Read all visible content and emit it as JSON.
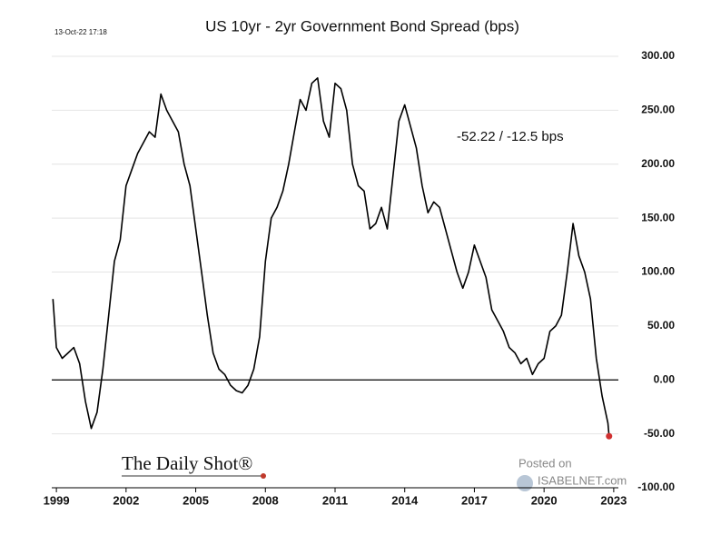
{
  "chart_data": {
    "type": "line",
    "title": "US 10yr - 2yr Government Bond Spread (bps)",
    "timestamp": "13-Oct-22 17:18",
    "annotation": "-52.22  /  -12.5 bps",
    "source": "The Daily Shot®",
    "posted_on": "Posted on",
    "watermark": "ISABELNET.com",
    "xlim": [
      1998.8,
      2023.2
    ],
    "xticks": [
      1999,
      2002,
      2005,
      2008,
      2011,
      2014,
      2017,
      2020,
      2023
    ],
    "ylim": [
      -100,
      300
    ],
    "yticks": [
      {
        "value": 300,
        "label": "300.00"
      },
      {
        "value": 250,
        "label": "250.00"
      },
      {
        "value": 200,
        "label": "200.00"
      },
      {
        "value": 150,
        "label": "150.00"
      },
      {
        "value": 100,
        "label": "100.00"
      },
      {
        "value": 50,
        "label": "50.00"
      },
      {
        "value": 0,
        "label": "0.00"
      },
      {
        "value": -50,
        "label": "-50.00"
      },
      {
        "value": -100,
        "label": "-100.00"
      }
    ],
    "grid": true,
    "zero_line": true,
    "last_point_color": "#d03030",
    "x": [
      1998.85,
      1999,
      1999.25,
      1999.5,
      1999.75,
      2000,
      2000.25,
      2000.5,
      2000.75,
      2001,
      2001.25,
      2001.5,
      2001.75,
      2002,
      2002.25,
      2002.5,
      2002.75,
      2003,
      2003.25,
      2003.5,
      2003.75,
      2004,
      2004.25,
      2004.5,
      2004.75,
      2005,
      2005.25,
      2005.5,
      2005.75,
      2006,
      2006.25,
      2006.5,
      2006.75,
      2007,
      2007.25,
      2007.5,
      2007.75,
      2008,
      2008.25,
      2008.5,
      2008.75,
      2009,
      2009.25,
      2009.5,
      2009.75,
      2010,
      2010.25,
      2010.5,
      2010.75,
      2011,
      2011.25,
      2011.5,
      2011.75,
      2012,
      2012.25,
      2012.5,
      2012.75,
      2013,
      2013.25,
      2013.5,
      2013.75,
      2014,
      2014.25,
      2014.5,
      2014.75,
      2015,
      2015.25,
      2015.5,
      2015.75,
      2016,
      2016.25,
      2016.5,
      2016.75,
      2017,
      2017.25,
      2017.5,
      2017.75,
      2018,
      2018.25,
      2018.5,
      2018.75,
      2019,
      2019.25,
      2019.5,
      2019.75,
      2020,
      2020.25,
      2020.5,
      2020.75,
      2021,
      2021.25,
      2021.5,
      2021.75,
      2022,
      2022.25,
      2022.5,
      2022.75,
      2022.8
    ],
    "series": [
      {
        "name": "US 10yr - 2yr spread",
        "color": "#000000",
        "values": [
          75,
          30,
          20,
          25,
          30,
          15,
          -20,
          -45,
          -30,
          10,
          60,
          110,
          130,
          180,
          195,
          210,
          220,
          230,
          225,
          265,
          250,
          240,
          230,
          200,
          180,
          140,
          100,
          60,
          25,
          10,
          5,
          -5,
          -10,
          -12,
          -5,
          10,
          40,
          110,
          150,
          160,
          175,
          200,
          230,
          260,
          250,
          275,
          280,
          240,
          225,
          275,
          270,
          250,
          200,
          180,
          175,
          140,
          145,
          160,
          140,
          190,
          240,
          255,
          235,
          215,
          180,
          155,
          165,
          160,
          140,
          120,
          100,
          85,
          100,
          125,
          110,
          95,
          65,
          55,
          45,
          30,
          25,
          15,
          20,
          5,
          15,
          20,
          45,
          50,
          60,
          100,
          145,
          115,
          100,
          75,
          20,
          -15,
          -40,
          -52.22
        ]
      }
    ]
  }
}
